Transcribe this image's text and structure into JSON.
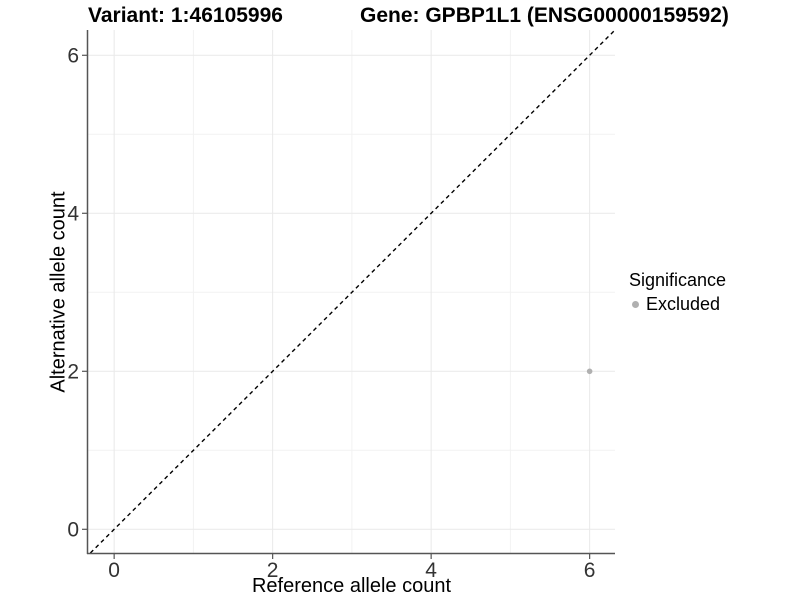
{
  "header": {
    "variant_title": "Variant: 1:46105996",
    "gene_title": "Gene: GPBP1L1 (ENSG00000159592)"
  },
  "chart_data": {
    "type": "scatter",
    "xlabel": "Reference allele count",
    "ylabel": "Alternative allele count",
    "xlim": [
      -0.33,
      6.32
    ],
    "ylim": [
      -0.3,
      6.32
    ],
    "x_ticks": [
      0,
      2,
      4,
      6
    ],
    "y_ticks": [
      0,
      2,
      4,
      6
    ],
    "x_minor_ticks": [
      1,
      3,
      5
    ],
    "y_minor_ticks": [
      1,
      3,
      5
    ],
    "grid": "on",
    "identity_line": {
      "style": "dashed",
      "slope": 1,
      "intercept": 0,
      "color": "#000000"
    },
    "series": [
      {
        "name": "Excluded",
        "color": "#b0b0b0",
        "points": [
          {
            "x": 6,
            "y": 2
          }
        ]
      }
    ],
    "legend": {
      "title": "Significance",
      "position": "right",
      "items": [
        {
          "label": "Excluded",
          "color": "#b0b0b0",
          "marker": "circle"
        }
      ]
    },
    "colors": {
      "grid_major": "#e9e9e9",
      "grid_minor": "#f2f2f2",
      "axis_line": "#555555",
      "tick_mark": "#555555",
      "tick_text": "#333333"
    }
  }
}
